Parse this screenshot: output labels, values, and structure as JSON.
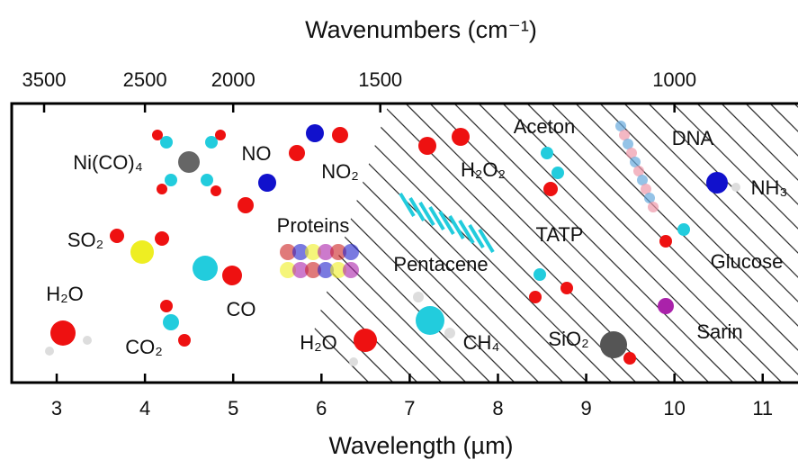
{
  "chart_data": {
    "type": "annotated-axis",
    "title": "Wavenumbers (cm⁻¹)",
    "x_label": "Wavelength (µm)",
    "xlim": [
      2.49,
      11.4
    ],
    "xticks": [
      3,
      4,
      5,
      6,
      7,
      8,
      9,
      10,
      11
    ],
    "x2ticks": [
      3500,
      2500,
      2000,
      1500,
      1000
    ],
    "labels": [
      "Ni(CO)₄",
      "NO",
      "NO₂",
      "H₂O₂",
      "Aceton",
      "DNA",
      "NH₃",
      "SO₂",
      "Proteins",
      "TATP",
      "Glucose",
      "Pentacene",
      "CO",
      "H₂O",
      "CO₂",
      "H₂O",
      "CH₄",
      "SiO₂",
      "Sarin"
    ]
  }
}
